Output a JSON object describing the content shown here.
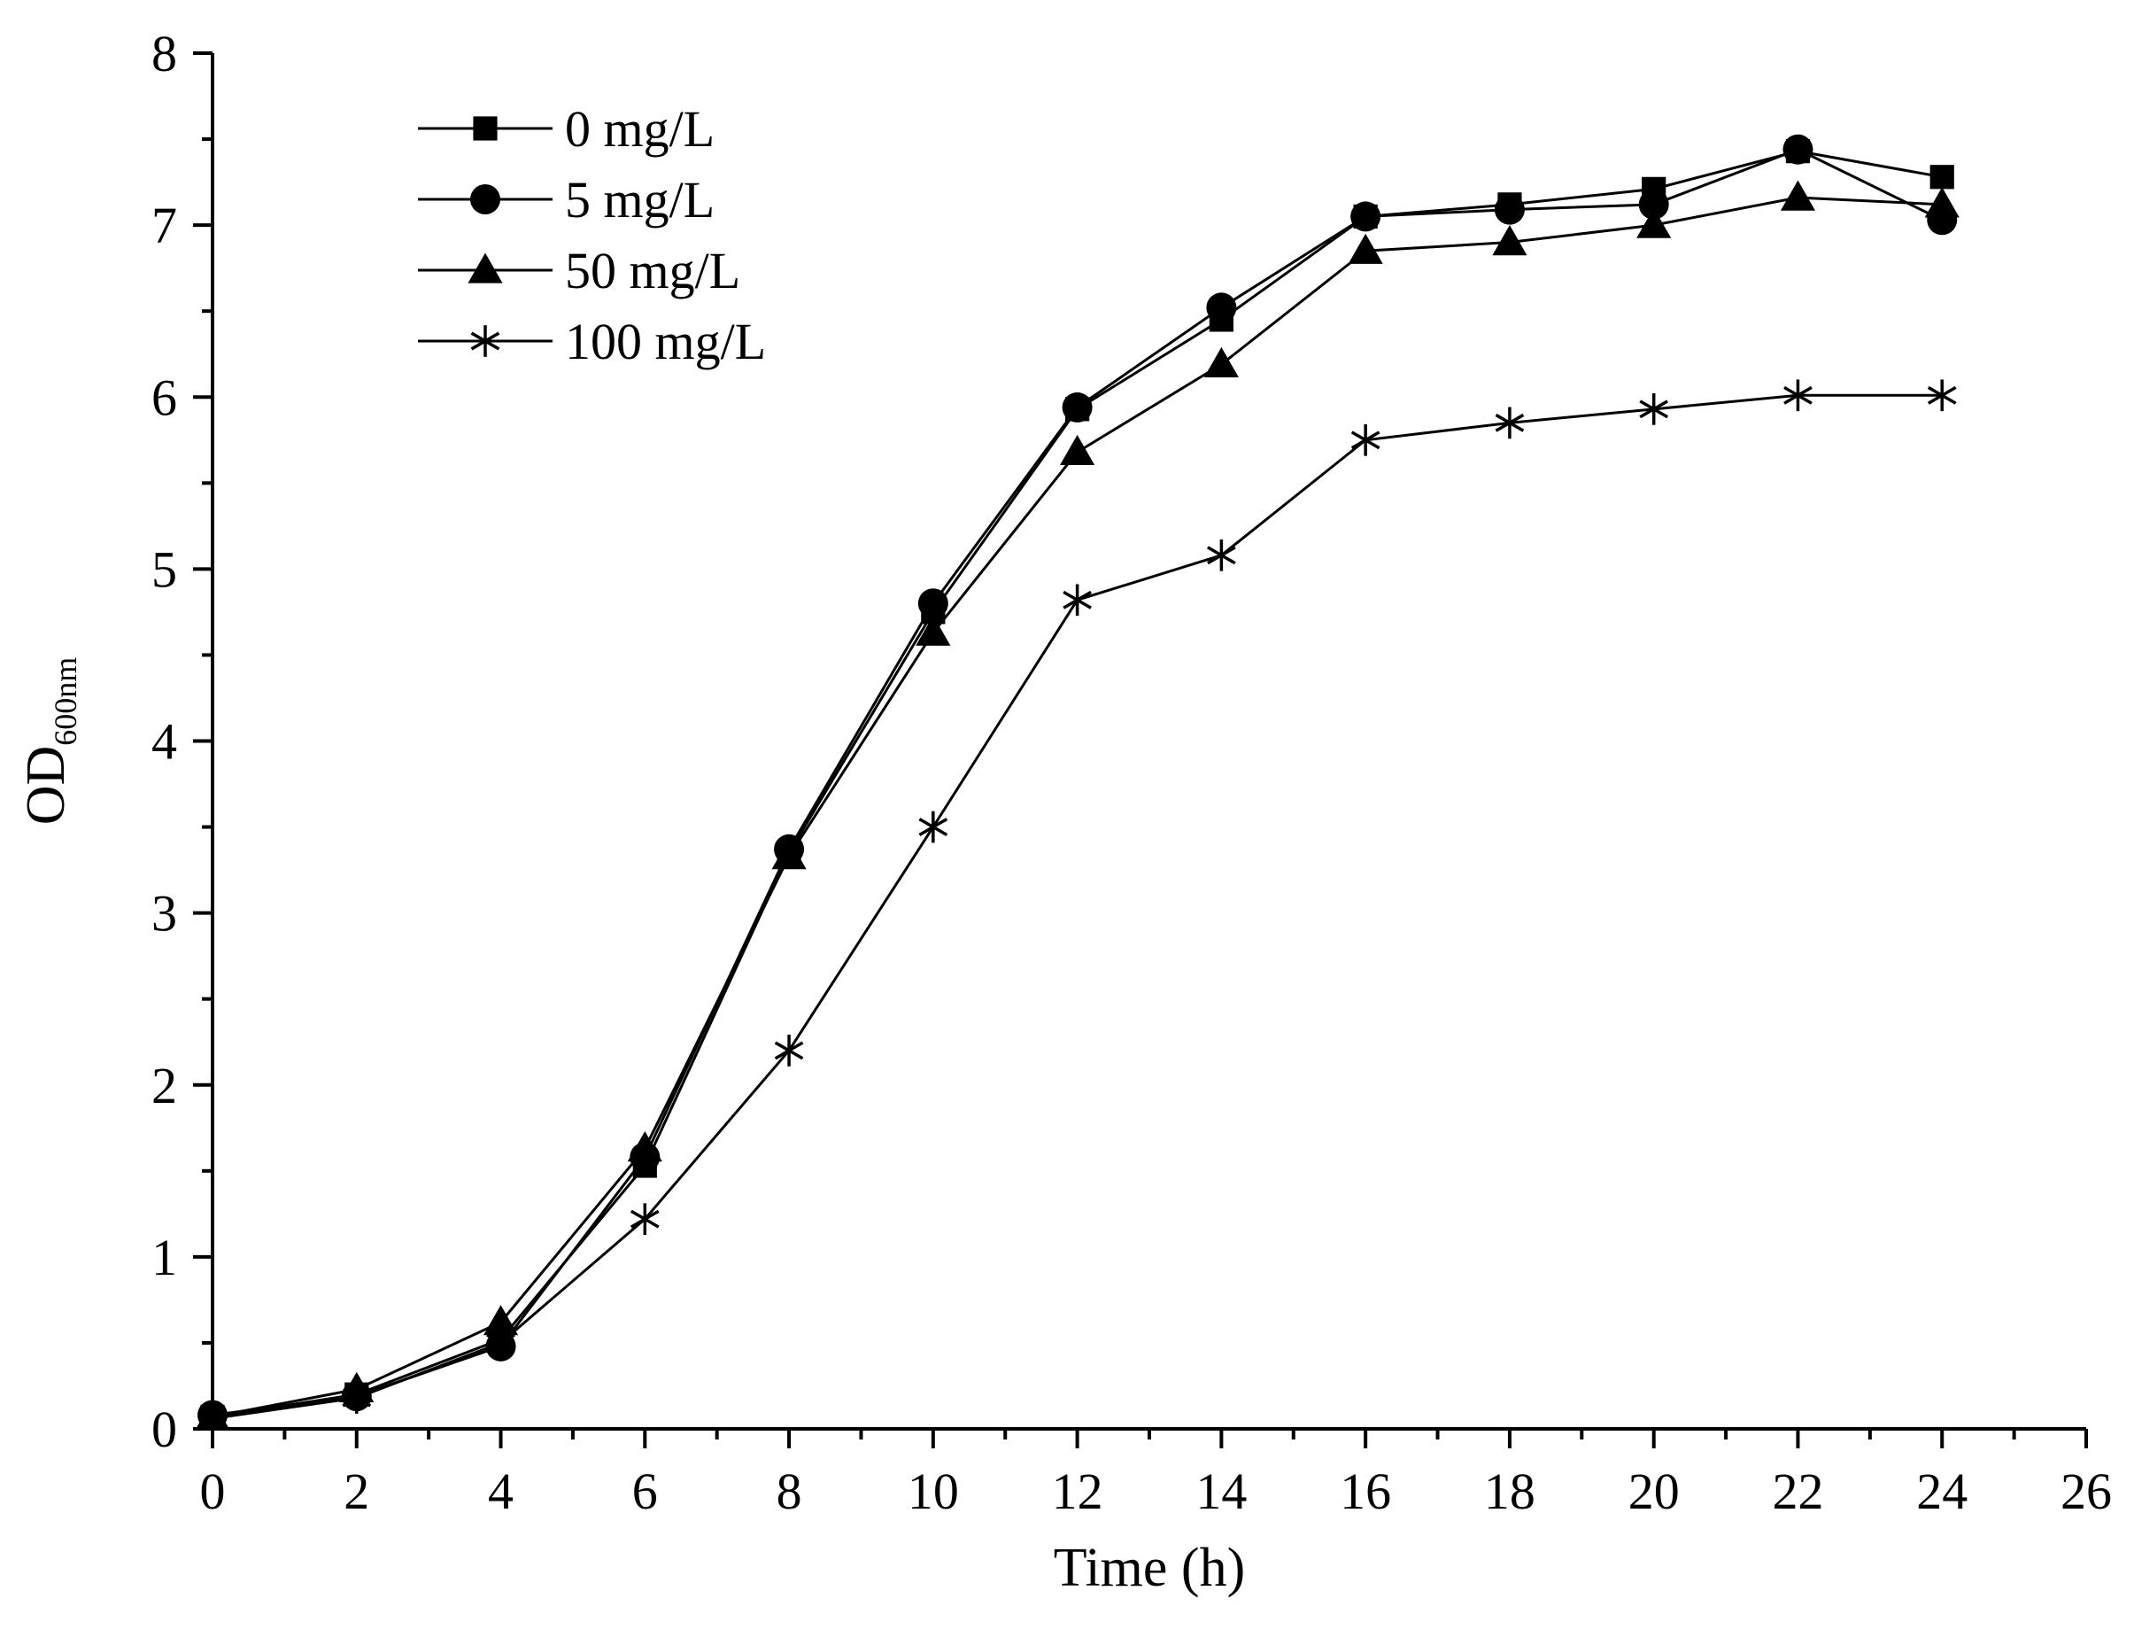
{
  "chart_data": {
    "type": "line",
    "title": "",
    "xlabel": "Time (h)",
    "ylabel": "OD",
    "ylabel_subscript": "600nm",
    "xlim": [
      0,
      26
    ],
    "ylim": [
      0,
      8
    ],
    "xticks": [
      0,
      2,
      4,
      6,
      8,
      10,
      12,
      14,
      16,
      18,
      20,
      22,
      24,
      26
    ],
    "yticks": [
      0,
      1,
      2,
      3,
      4,
      5,
      6,
      7,
      8
    ],
    "x": [
      0,
      2,
      4,
      6,
      8,
      10,
      12,
      14,
      16,
      18,
      20,
      22,
      24
    ],
    "legend_position": "top-left",
    "series": [
      {
        "name": "0 mg/L",
        "marker": "square",
        "values": [
          0.07,
          0.2,
          0.52,
          1.53,
          3.35,
          4.75,
          5.93,
          6.45,
          7.05,
          7.12,
          7.21,
          7.43,
          7.28
        ]
      },
      {
        "name": "5 mg/L",
        "marker": "circle",
        "values": [
          0.08,
          0.19,
          0.48,
          1.58,
          3.37,
          4.8,
          5.94,
          6.52,
          7.05,
          7.09,
          7.12,
          7.44,
          7.03
        ]
      },
      {
        "name": "50 mg/L",
        "marker": "triangle",
        "values": [
          0.07,
          0.23,
          0.62,
          1.63,
          3.33,
          4.63,
          5.68,
          6.19,
          6.85,
          6.9,
          7.0,
          7.16,
          7.12
        ]
      },
      {
        "name": "100 mg/L",
        "marker": "star",
        "values": [
          0.06,
          0.18,
          0.5,
          1.22,
          2.2,
          3.5,
          4.82,
          5.08,
          5.75,
          5.85,
          5.93,
          6.01,
          6.01
        ]
      }
    ]
  }
}
